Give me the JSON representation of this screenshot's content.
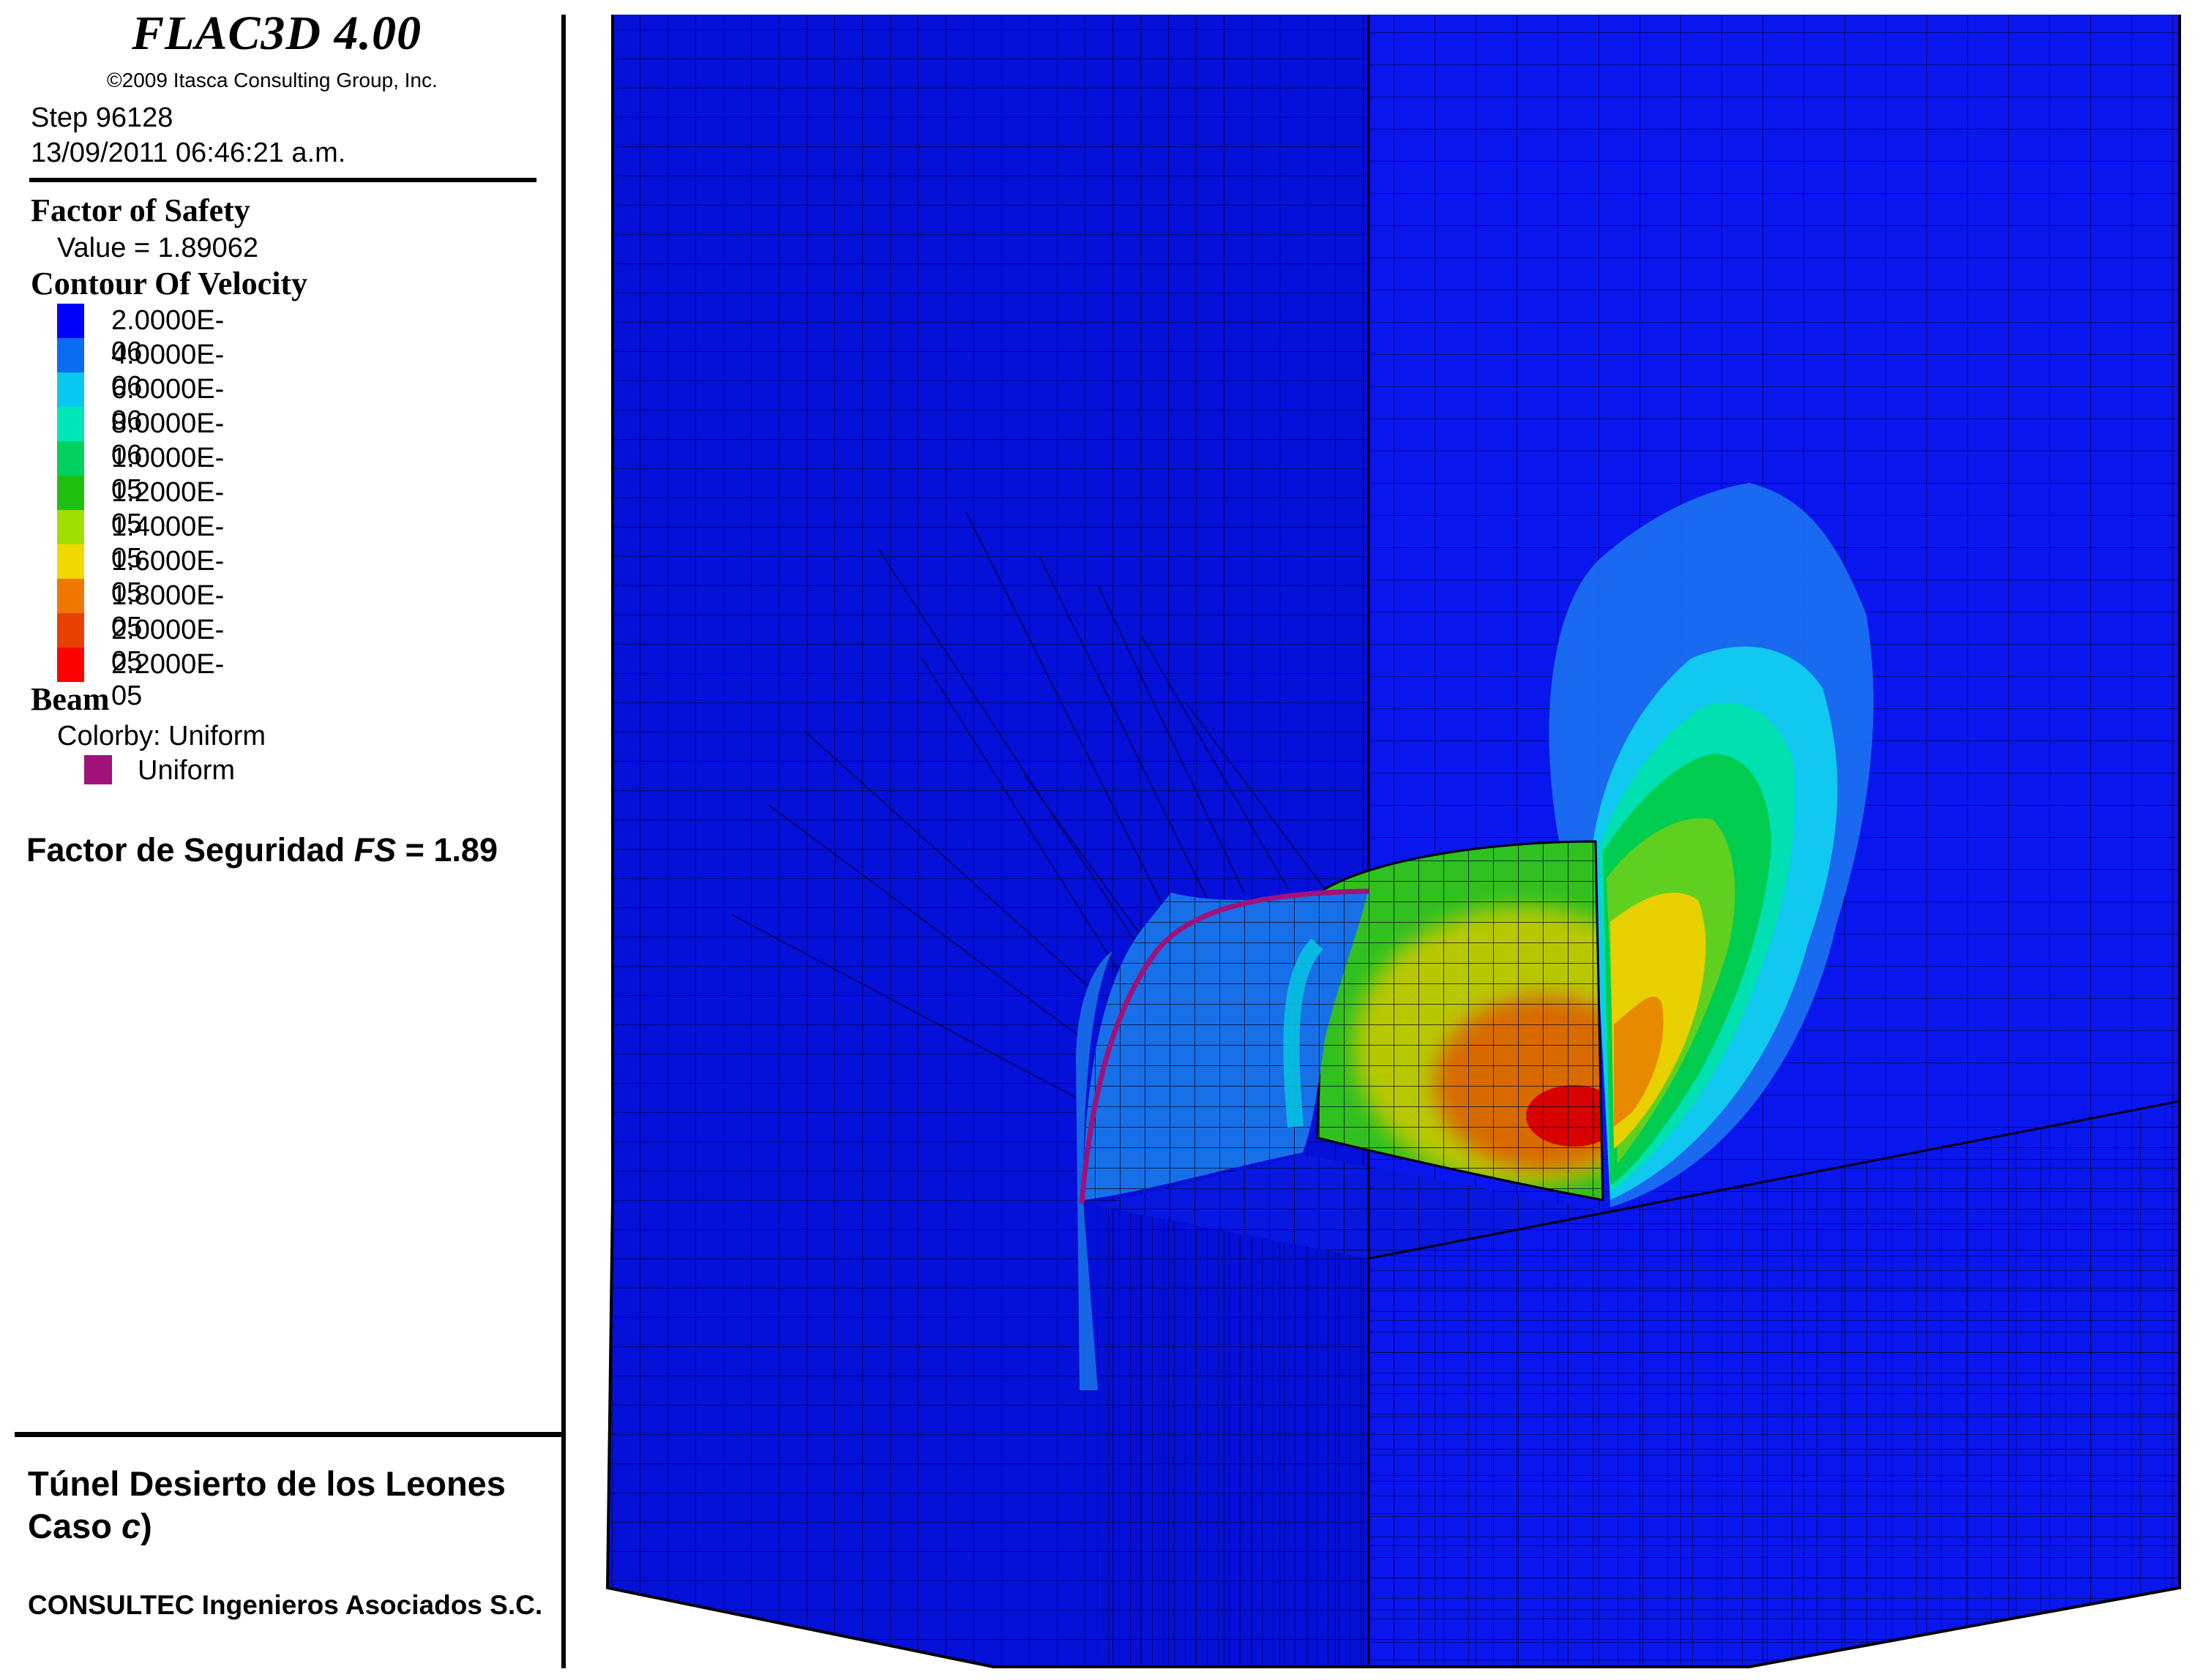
{
  "app": {
    "title": "FLAC3D 4.00",
    "copyright": "©2009 Itasca Consulting Group, Inc.",
    "step": "Step 96128",
    "datetime": "13/09/2011 06:46:21 a.m."
  },
  "factor_of_safety": {
    "heading": "Factor of Safety",
    "value_text": "Value = 1.89062"
  },
  "contour": {
    "heading": "Contour Of Velocity",
    "items": [
      {
        "label": "2.0000E-06",
        "color": "#0000ff"
      },
      {
        "label": "4.0000E-06",
        "color": "#0a6cf0"
      },
      {
        "label": "6.0000E-06",
        "color": "#08c8f0"
      },
      {
        "label": "8.0000E-06",
        "color": "#00e8b8"
      },
      {
        "label": "1.0000E-05",
        "color": "#00d060"
      },
      {
        "label": "1.2000E-05",
        "color": "#20c010"
      },
      {
        "label": "1.4000E-05",
        "color": "#a0e000"
      },
      {
        "label": "1.6000E-05",
        "color": "#f0d800"
      },
      {
        "label": "1.8000E-05",
        "color": "#f07800"
      },
      {
        "label": "2.0000E-05",
        "color": "#e84000"
      },
      {
        "label": "2.2000E-05",
        "color": "#ff0000"
      }
    ]
  },
  "beam": {
    "heading": "Beam",
    "colorby": "Colorby: Uniform",
    "item_label": "Uniform",
    "item_color": "#a0127a"
  },
  "fs_note": {
    "prefix": "Factor de Seguridad ",
    "symbol": "FS",
    "suffix": " = 1.89"
  },
  "project": {
    "line1": "Túnel Desierto de los Leones",
    "line2_prefix": "Caso ",
    "line2_var": "c",
    "line2_suffix": ")",
    "company": "CONSULTEC Ingenieros Asociados S.C."
  },
  "model_colors": {
    "block_left": "#0510d8",
    "block_right": "#0a16ee",
    "block_bottom": "#0818e0",
    "mesh_line": "#000033"
  }
}
